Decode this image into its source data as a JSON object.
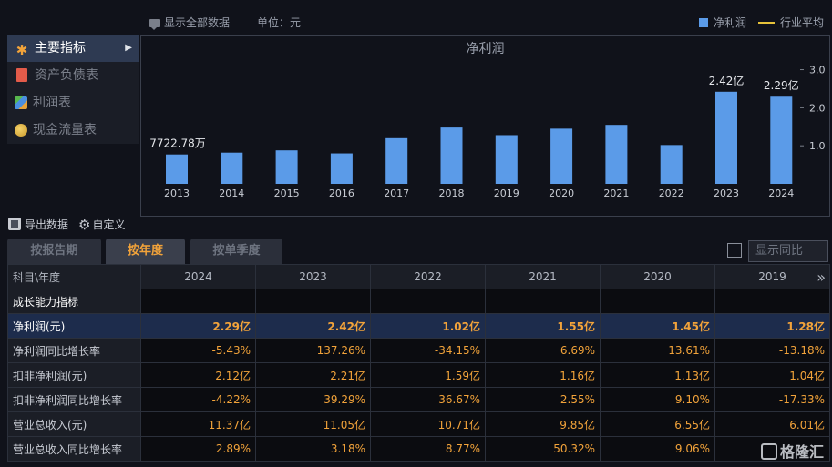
{
  "topbar": {
    "show_all": "显示全部数据",
    "unit": "单位：元",
    "legend_net_profit": "净利润",
    "legend_industry_avg": "行业平均"
  },
  "menu": {
    "items": [
      {
        "label": "主要指标",
        "icon": "star-icon",
        "active": true
      },
      {
        "label": "资产负债表",
        "icon": "document-icon",
        "active": false
      },
      {
        "label": "利润表",
        "icon": "cube-icon",
        "active": false
      },
      {
        "label": "现金流量表",
        "icon": "coins-icon",
        "active": false
      }
    ]
  },
  "chart_data": {
    "type": "bar",
    "title": "净利润",
    "categories": [
      "2013",
      "2014",
      "2015",
      "2016",
      "2017",
      "2018",
      "2019",
      "2020",
      "2021",
      "2022",
      "2023",
      "2024"
    ],
    "values": [
      0.7723,
      0.82,
      0.88,
      0.8,
      1.2,
      1.48,
      1.28,
      1.45,
      1.55,
      1.02,
      2.42,
      2.29
    ],
    "data_labels": {
      "0": "7722.78万",
      "10": "2.42亿",
      "11": "2.29亿"
    },
    "yticks": [
      "1.0",
      "2.0",
      "3.0"
    ],
    "ylim": [
      0,
      3.3
    ],
    "grid": false,
    "bar_color": "#5b9be8"
  },
  "toolbar": {
    "export": "导出数据",
    "customize": "自定义"
  },
  "tabs": [
    {
      "label": "按报告期",
      "active": false
    },
    {
      "label": "按年度",
      "active": true
    },
    {
      "label": "按单季度",
      "active": false
    }
  ],
  "yoy_label": "显示同比",
  "table": {
    "corner": "科目\\年度",
    "years": [
      "2024",
      "2023",
      "2022",
      "2021",
      "2020",
      "2019"
    ],
    "more": "»",
    "section": "成长能力指标",
    "rows": [
      {
        "label": "净利润(元)",
        "values": [
          "2.29亿",
          "2.42亿",
          "1.02亿",
          "1.55亿",
          "1.45亿",
          "1.28亿"
        ],
        "highlight": true
      },
      {
        "label": "净利润同比增长率",
        "values": [
          "-5.43%",
          "137.26%",
          "-34.15%",
          "6.69%",
          "13.61%",
          "-13.18%"
        ],
        "highlight": false
      },
      {
        "label": "扣非净利润(元)",
        "values": [
          "2.12亿",
          "2.21亿",
          "1.59亿",
          "1.16亿",
          "1.13亿",
          "1.04亿"
        ],
        "highlight": false
      },
      {
        "label": "扣非净利润同比增长率",
        "values": [
          "-4.22%",
          "39.29%",
          "36.67%",
          "2.55%",
          "9.10%",
          "-17.33%"
        ],
        "highlight": false
      },
      {
        "label": "营业总收入(元)",
        "values": [
          "11.37亿",
          "11.05亿",
          "10.71亿",
          "9.85亿",
          "6.55亿",
          "6.01亿"
        ],
        "highlight": false
      },
      {
        "label": "营业总收入同比增长率",
        "values": [
          "2.89%",
          "3.18%",
          "8.77%",
          "50.32%",
          "9.06%",
          ""
        ],
        "highlight": false
      }
    ]
  },
  "watermark": "格隆汇"
}
